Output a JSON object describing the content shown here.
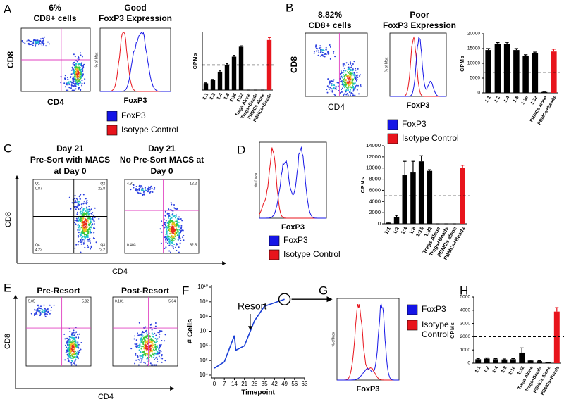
{
  "figure": {
    "A": {
      "label": "A",
      "flow_title": [
        "6%",
        "CD8+ cells"
      ],
      "flow_x": "CD4",
      "flow_y": "CD8",
      "hist_title": [
        "Good",
        "FoxP3 Expression"
      ],
      "hist_x": "FoxP3",
      "hist_y": "% of Max",
      "legend": [
        {
          "name": "FoxP3",
          "color": "#1515e6"
        },
        {
          "name": "Isotype Control",
          "color": "#e8141c"
        }
      ]
    },
    "B": {
      "label": "B",
      "flow_title": [
        "8.82%",
        "CD8+ cells"
      ],
      "flow_x": "CD4",
      "flow_y": "CD8",
      "hist_title": [
        "Poor",
        "FoxP3 Expression"
      ],
      "hist_x": "FoxP3",
      "hist_y": "% of Max",
      "legend": [
        {
          "name": "FoxP3",
          "color": "#1515e6"
        },
        {
          "name": "Isotype Control",
          "color": "#e8141c"
        }
      ]
    },
    "C": {
      "label": "C",
      "x_axis": "CD4",
      "y_axis": "CD8",
      "plots": [
        {
          "title": [
            "Day 21",
            "Pre-Sort with MACS",
            "at Day 0"
          ],
          "gate_names": [
            "Q1",
            "Q2",
            "Q4",
            "Q3"
          ],
          "gates": [
            0.87,
            22.8,
            4.22,
            72.2
          ]
        },
        {
          "title": [
            "Day 21",
            "No Pre-Sort MACS at",
            "Day 0"
          ],
          "gates": [
            4.91,
            12.2,
            0.403,
            82.5
          ]
        }
      ]
    },
    "D": {
      "label": "D",
      "hist_x": "FoxP3",
      "hist_y": "% of Max",
      "legend": [
        {
          "name": "FoxP3",
          "color": "#1515e6"
        },
        {
          "name": "Isotype Control",
          "color": "#e8141c"
        }
      ]
    },
    "E": {
      "label": "E",
      "x_axis": "CD4",
      "y_axis": "CD8",
      "plots": [
        {
          "title": "Pre-Resort",
          "gates": [
            5.05,
            5.82
          ]
        },
        {
          "title": "Post-Resort",
          "gates": [
            0.181,
            5.04
          ]
        }
      ]
    },
    "F": {
      "label": "F"
    },
    "G": {
      "label": "G",
      "hist_x": "FoxP3",
      "hist_y": "% of Max",
      "legend": [
        {
          "name": "FoxP3",
          "color": "#1515e6"
        },
        {
          "name_lines": [
            "Isotype",
            "Control"
          ],
          "color": "#e8141c"
        }
      ]
    },
    "H": {
      "label": "H"
    }
  },
  "chart_data": [
    {
      "type": "bar",
      "ylabel": "CPMs",
      "categories": [
        "1:1",
        "1:2",
        "1:4",
        "1:8",
        "1:16",
        "1:32",
        "Tregs Alone",
        "Tregs+Beads",
        "PBMCs alone",
        "PBMCs+Beads"
      ],
      "values": [
        4,
        6,
        11,
        15,
        20,
        26,
        0,
        0,
        0,
        30
      ],
      "errors": [
        0.3,
        0.4,
        0.8,
        0.8,
        0.8,
        0.5,
        0,
        0,
        0,
        1.5
      ],
      "colors": [
        "#000000",
        "#000000",
        "#000000",
        "#000000",
        "#000000",
        "#000000",
        "#000000",
        "#000000",
        "#000000",
        "#e8141c"
      ],
      "ylim": [
        0,
        35
      ],
      "reference_line": 15
    },
    {
      "type": "bar",
      "ylabel": "CPMs",
      "categories": [
        "1:1",
        "1:2",
        "1:4",
        "1:8",
        "1:16",
        "1:32",
        "PBMCs alone",
        "PBMCs+Beads"
      ],
      "values": [
        14500,
        16500,
        16500,
        14500,
        12500,
        13500,
        300,
        14000
      ],
      "errors": [
        500,
        500,
        600,
        500,
        400,
        300,
        0,
        800
      ],
      "colors": [
        "#000000",
        "#000000",
        "#000000",
        "#000000",
        "#000000",
        "#000000",
        "#000000",
        "#e8141c"
      ],
      "ylim": [
        0,
        20000
      ],
      "yticks": [
        0,
        5000,
        10000,
        15000,
        20000
      ],
      "reference_line": 7000
    },
    {
      "type": "bar",
      "ylabel": "CPMs",
      "categories": [
        "1:1",
        "1:2",
        "1:4",
        "1:8",
        "1:16",
        "1:32",
        "Tregs Alone",
        "Tregs+Beads",
        "PBMCs alone",
        "PBMCs+Beads"
      ],
      "values": [
        200,
        1200,
        8700,
        9200,
        11200,
        9500,
        0,
        0,
        0,
        10000
      ],
      "errors": [
        100,
        300,
        2500,
        2000,
        1000,
        200,
        0,
        0,
        0,
        500
      ],
      "colors": [
        "#000000",
        "#000000",
        "#000000",
        "#000000",
        "#000000",
        "#000000",
        "#000000",
        "#000000",
        "#000000",
        "#e8141c"
      ],
      "ylim": [
        0,
        14000
      ],
      "yticks": [
        0,
        2000,
        4000,
        6000,
        8000,
        10000,
        12000,
        14000
      ],
      "reference_line": 5000
    },
    {
      "type": "line",
      "xlabel": "Timepoint",
      "ylabel": "# Cells",
      "annotation": "Resort",
      "log_y": true,
      "x": [
        0,
        7,
        14,
        15,
        21,
        28,
        35,
        49
      ],
      "values": [
        30000,
        80000,
        5000000,
        500000,
        1000000,
        50000000,
        500000000,
        1500000000
      ],
      "color": "#1a3fd6",
      "xlim": [
        0,
        63
      ],
      "xticks": [
        0,
        7,
        14,
        21,
        28,
        35,
        42,
        49,
        56,
        63
      ],
      "ylim": [
        10000,
        10000000000
      ],
      "yticks": [
        {
          "value": 10000,
          "label": "10⁴"
        },
        {
          "value": 100000,
          "label": "10⁵"
        },
        {
          "value": 1000000,
          "label": "10⁶"
        },
        {
          "value": 10000000,
          "label": "10⁷"
        },
        {
          "value": 100000000,
          "label": "10⁸"
        },
        {
          "value": 1000000000,
          "label": "10⁹"
        },
        {
          "value": 10000000000,
          "label": "10¹⁰"
        }
      ]
    },
    {
      "type": "bar",
      "ylabel": "CPMs",
      "categories": [
        "1:1",
        "1:2",
        "1:4",
        "1:8",
        "1:16",
        "1:32",
        "Tregs Alone",
        "Tregs+Beads",
        "PBMCs Alone",
        "PBMCs+Beads"
      ],
      "values": [
        300,
        350,
        300,
        280,
        300,
        800,
        200,
        150,
        50,
        3900
      ],
      "errors": [
        50,
        50,
        50,
        40,
        50,
        350,
        30,
        30,
        10,
        300
      ],
      "colors": [
        "#000000",
        "#000000",
        "#000000",
        "#000000",
        "#000000",
        "#000000",
        "#000000",
        "#000000",
        "#000000",
        "#e8141c"
      ],
      "ylim": [
        0,
        5000
      ],
      "yticks": [
        0,
        1000,
        2000,
        3000,
        4000,
        5000
      ],
      "reference_line": 2000
    }
  ]
}
